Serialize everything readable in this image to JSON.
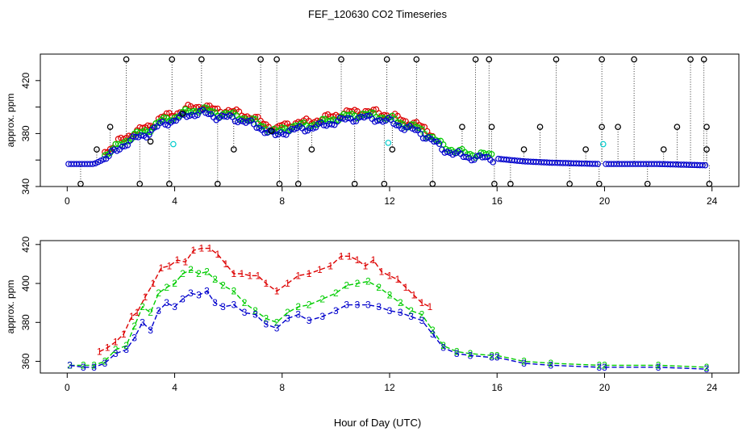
{
  "figure": {
    "title": "FEF_120630  CO2 Timeseries",
    "xlabel": "Hour of Day (UTC)"
  },
  "colors": {
    "series1": "#dd0000",
    "series2": "#00cc00",
    "series3": "#0000cc",
    "series4": "#000000",
    "series5": "#00cccc",
    "axis": "#000000"
  },
  "chart_data": [
    {
      "type": "scatter",
      "ylabel": "approx. ppm",
      "xlim": [
        -1,
        25
      ],
      "ylim": [
        340,
        440
      ],
      "x_ticks": [
        0,
        4,
        8,
        12,
        16,
        20,
        24
      ],
      "y_ticks": [
        340,
        380,
        420
      ],
      "y_minor_ticks": [
        360,
        400
      ],
      "marker": "open-circle",
      "dotted_drop_lines": true,
      "base_profile": [
        {
          "x": 0.05,
          "y": 357
        },
        {
          "x": 1.0,
          "y": 357
        },
        {
          "x": 1.5,
          "y": 362
        },
        {
          "x": 2.0,
          "y": 370
        },
        {
          "x": 2.5,
          "y": 376
        },
        {
          "x": 3.0,
          "y": 380
        },
        {
          "x": 3.5,
          "y": 387
        },
        {
          "x": 4.0,
          "y": 390
        },
        {
          "x": 4.5,
          "y": 394
        },
        {
          "x": 5.0,
          "y": 396
        },
        {
          "x": 5.5,
          "y": 393
        },
        {
          "x": 6.0,
          "y": 392
        },
        {
          "x": 6.5,
          "y": 390
        },
        {
          "x": 7.0,
          "y": 386
        },
        {
          "x": 7.5,
          "y": 381
        },
        {
          "x": 7.8,
          "y": 378
        },
        {
          "x": 8.0,
          "y": 381
        },
        {
          "x": 8.5,
          "y": 383
        },
        {
          "x": 9.0,
          "y": 384
        },
        {
          "x": 9.5,
          "y": 386
        },
        {
          "x": 10.0,
          "y": 389
        },
        {
          "x": 10.5,
          "y": 391
        },
        {
          "x": 11.0,
          "y": 392
        },
        {
          "x": 11.5,
          "y": 391
        },
        {
          "x": 12.0,
          "y": 389
        },
        {
          "x": 12.5,
          "y": 385
        },
        {
          "x": 13.0,
          "y": 382
        },
        {
          "x": 13.5,
          "y": 376
        },
        {
          "x": 14.0,
          "y": 368
        },
        {
          "x": 14.5,
          "y": 364
        },
        {
          "x": 15.0,
          "y": 362
        },
        {
          "x": 15.9,
          "y": 361
        },
        {
          "x": 16.0,
          "y": 361
        },
        {
          "x": 17.0,
          "y": 359
        },
        {
          "x": 18.0,
          "y": 358
        },
        {
          "x": 19.8,
          "y": 357
        },
        {
          "x": 20.0,
          "y": 357
        },
        {
          "x": 22.0,
          "y": 357
        },
        {
          "x": 23.8,
          "y": 356
        }
      ],
      "gaps": [
        [
          15.85,
          15.95
        ],
        [
          19.85,
          20.05
        ]
      ],
      "series": [
        {
          "key": "s1",
          "offset": 5,
          "rise_only": true,
          "x_range": [
            0.8,
            13.6
          ]
        },
        {
          "key": "s2",
          "offset": 2.5,
          "rise_only": true,
          "x_range": [
            0.8,
            15.8
          ]
        },
        {
          "key": "s3",
          "offset": 0,
          "rise_only": false,
          "x_range": [
            0.05,
            23.8
          ]
        }
      ],
      "outlier_points": [
        {
          "x": 0.5,
          "y": 342
        },
        {
          "x": 1.1,
          "y": 368
        },
        {
          "x": 1.6,
          "y": 385
        },
        {
          "x": 2.2,
          "y": 436
        },
        {
          "x": 2.7,
          "y": 342
        },
        {
          "x": 3.1,
          "y": 374
        },
        {
          "x": 3.8,
          "y": 342
        },
        {
          "x": 3.9,
          "y": 436
        },
        {
          "x": 4.3,
          "y": 395
        },
        {
          "x": 5.0,
          "y": 436
        },
        {
          "x": 5.6,
          "y": 342
        },
        {
          "x": 6.2,
          "y": 368
        },
        {
          "x": 7.2,
          "y": 436
        },
        {
          "x": 7.6,
          "y": 382
        },
        {
          "x": 7.8,
          "y": 436
        },
        {
          "x": 7.9,
          "y": 342
        },
        {
          "x": 8.6,
          "y": 342
        },
        {
          "x": 9.1,
          "y": 368
        },
        {
          "x": 10.2,
          "y": 436
        },
        {
          "x": 10.7,
          "y": 342
        },
        {
          "x": 11.8,
          "y": 342
        },
        {
          "x": 11.9,
          "y": 436
        },
        {
          "x": 12.1,
          "y": 368
        },
        {
          "x": 13.0,
          "y": 436
        },
        {
          "x": 13.6,
          "y": 342
        },
        {
          "x": 14.7,
          "y": 385
        },
        {
          "x": 15.2,
          "y": 436
        },
        {
          "x": 15.7,
          "y": 436
        },
        {
          "x": 15.8,
          "y": 385
        },
        {
          "x": 15.9,
          "y": 342
        },
        {
          "x": 16.5,
          "y": 342
        },
        {
          "x": 17.0,
          "y": 368
        },
        {
          "x": 17.6,
          "y": 385
        },
        {
          "x": 18.2,
          "y": 436
        },
        {
          "x": 18.7,
          "y": 342
        },
        {
          "x": 19.3,
          "y": 368
        },
        {
          "x": 19.8,
          "y": 342
        },
        {
          "x": 19.9,
          "y": 385
        },
        {
          "x": 19.9,
          "y": 436
        },
        {
          "x": 20.5,
          "y": 385
        },
        {
          "x": 21.1,
          "y": 436
        },
        {
          "x": 21.6,
          "y": 342
        },
        {
          "x": 22.2,
          "y": 368
        },
        {
          "x": 22.7,
          "y": 385
        },
        {
          "x": 23.2,
          "y": 436
        },
        {
          "x": 23.7,
          "y": 436
        },
        {
          "x": 23.8,
          "y": 385
        },
        {
          "x": 23.8,
          "y": 368
        },
        {
          "x": 23.9,
          "y": 342
        }
      ],
      "cyan_points": [
        {
          "x": 3.95,
          "y": 372
        },
        {
          "x": 11.95,
          "y": 373
        },
        {
          "x": 19.95,
          "y": 372
        }
      ]
    },
    {
      "type": "line",
      "ylabel": "approx. ppm",
      "xlim": [
        -1,
        25
      ],
      "ylim": [
        354,
        422
      ],
      "x_ticks": [
        0,
        4,
        8,
        12,
        16,
        20,
        24
      ],
      "y_ticks": [
        360,
        380,
        400,
        420
      ],
      "marker": "digit-labels",
      "series": [
        {
          "key": "s1",
          "name": "1",
          "points": [
            {
              "x": 1.2,
              "y": 365
            },
            {
              "x": 1.5,
              "y": 367
            },
            {
              "x": 1.8,
              "y": 370
            },
            {
              "x": 2.1,
              "y": 374
            },
            {
              "x": 2.4,
              "y": 383
            },
            {
              "x": 2.6,
              "y": 385
            },
            {
              "x": 2.9,
              "y": 393
            },
            {
              "x": 3.2,
              "y": 400
            },
            {
              "x": 3.5,
              "y": 408
            },
            {
              "x": 3.8,
              "y": 409
            },
            {
              "x": 4.1,
              "y": 412
            },
            {
              "x": 4.4,
              "y": 411
            },
            {
              "x": 4.7,
              "y": 417
            },
            {
              "x": 5.0,
              "y": 418
            },
            {
              "x": 5.3,
              "y": 418
            },
            {
              "x": 5.6,
              "y": 415
            },
            {
              "x": 5.9,
              "y": 410
            },
            {
              "x": 6.2,
              "y": 405
            },
            {
              "x": 6.5,
              "y": 405
            },
            {
              "x": 6.8,
              "y": 404
            },
            {
              "x": 7.1,
              "y": 404
            },
            {
              "x": 7.4,
              "y": 400
            },
            {
              "x": 7.8,
              "y": 396
            },
            {
              "x": 8.2,
              "y": 400
            },
            {
              "x": 8.6,
              "y": 404
            },
            {
              "x": 9.0,
              "y": 405
            },
            {
              "x": 9.4,
              "y": 407
            },
            {
              "x": 9.8,
              "y": 409
            },
            {
              "x": 10.2,
              "y": 414
            },
            {
              "x": 10.5,
              "y": 414
            },
            {
              "x": 10.8,
              "y": 412
            },
            {
              "x": 11.1,
              "y": 409
            },
            {
              "x": 11.4,
              "y": 412
            },
            {
              "x": 11.7,
              "y": 406
            },
            {
              "x": 12.0,
              "y": 404
            },
            {
              "x": 12.3,
              "y": 402
            },
            {
              "x": 12.6,
              "y": 398
            },
            {
              "x": 12.9,
              "y": 394
            },
            {
              "x": 13.2,
              "y": 390
            },
            {
              "x": 13.5,
              "y": 388
            }
          ]
        },
        {
          "key": "s2",
          "name": "2",
          "points": [
            {
              "x": 0.1,
              "y": 358
            },
            {
              "x": 0.6,
              "y": 358
            },
            {
              "x": 1.0,
              "y": 358
            },
            {
              "x": 1.4,
              "y": 360
            },
            {
              "x": 1.8,
              "y": 366
            },
            {
              "x": 2.2,
              "y": 368
            },
            {
              "x": 2.5,
              "y": 378
            },
            {
              "x": 2.8,
              "y": 388
            },
            {
              "x": 3.1,
              "y": 385
            },
            {
              "x": 3.4,
              "y": 395
            },
            {
              "x": 3.7,
              "y": 398
            },
            {
              "x": 4.0,
              "y": 400
            },
            {
              "x": 4.3,
              "y": 405
            },
            {
              "x": 4.6,
              "y": 407
            },
            {
              "x": 4.9,
              "y": 405
            },
            {
              "x": 5.2,
              "y": 406
            },
            {
              "x": 5.5,
              "y": 402
            },
            {
              "x": 5.8,
              "y": 399
            },
            {
              "x": 6.2,
              "y": 396
            },
            {
              "x": 6.6,
              "y": 390
            },
            {
              "x": 7.0,
              "y": 386
            },
            {
              "x": 7.4,
              "y": 382
            },
            {
              "x": 7.8,
              "y": 380
            },
            {
              "x": 8.2,
              "y": 385
            },
            {
              "x": 8.6,
              "y": 388
            },
            {
              "x": 9.0,
              "y": 389
            },
            {
              "x": 9.5,
              "y": 392
            },
            {
              "x": 10.0,
              "y": 395
            },
            {
              "x": 10.4,
              "y": 399
            },
            {
              "x": 10.8,
              "y": 400
            },
            {
              "x": 11.2,
              "y": 401
            },
            {
              "x": 11.6,
              "y": 398
            },
            {
              "x": 12.0,
              "y": 394
            },
            {
              "x": 12.4,
              "y": 390
            },
            {
              "x": 12.8,
              "y": 386
            },
            {
              "x": 13.2,
              "y": 384
            },
            {
              "x": 13.6,
              "y": 376
            },
            {
              "x": 14.0,
              "y": 368
            },
            {
              "x": 14.5,
              "y": 365
            },
            {
              "x": 15.0,
              "y": 364
            },
            {
              "x": 15.8,
              "y": 363
            },
            {
              "x": 16.0,
              "y": 363
            },
            {
              "x": 17.0,
              "y": 360
            },
            {
              "x": 18.0,
              "y": 359
            },
            {
              "x": 19.8,
              "y": 358
            },
            {
              "x": 20.0,
              "y": 358
            },
            {
              "x": 22.0,
              "y": 358
            },
            {
              "x": 23.8,
              "y": 357
            }
          ]
        },
        {
          "key": "s3",
          "name": "3",
          "points": [
            {
              "x": 0.1,
              "y": 358
            },
            {
              "x": 0.6,
              "y": 357
            },
            {
              "x": 1.0,
              "y": 357
            },
            {
              "x": 1.4,
              "y": 359
            },
            {
              "x": 1.8,
              "y": 364
            },
            {
              "x": 2.2,
              "y": 366
            },
            {
              "x": 2.5,
              "y": 372
            },
            {
              "x": 2.8,
              "y": 380
            },
            {
              "x": 3.1,
              "y": 376
            },
            {
              "x": 3.4,
              "y": 386
            },
            {
              "x": 3.7,
              "y": 390
            },
            {
              "x": 4.0,
              "y": 388
            },
            {
              "x": 4.3,
              "y": 392
            },
            {
              "x": 4.6,
              "y": 395
            },
            {
              "x": 4.9,
              "y": 394
            },
            {
              "x": 5.2,
              "y": 396
            },
            {
              "x": 5.5,
              "y": 390
            },
            {
              "x": 5.8,
              "y": 388
            },
            {
              "x": 6.2,
              "y": 389
            },
            {
              "x": 6.6,
              "y": 385
            },
            {
              "x": 7.0,
              "y": 384
            },
            {
              "x": 7.4,
              "y": 379
            },
            {
              "x": 7.8,
              "y": 377
            },
            {
              "x": 8.2,
              "y": 382
            },
            {
              "x": 8.6,
              "y": 384
            },
            {
              "x": 9.0,
              "y": 381
            },
            {
              "x": 9.5,
              "y": 383
            },
            {
              "x": 10.0,
              "y": 386
            },
            {
              "x": 10.4,
              "y": 389
            },
            {
              "x": 10.8,
              "y": 389
            },
            {
              "x": 11.2,
              "y": 389
            },
            {
              "x": 11.6,
              "y": 388
            },
            {
              "x": 12.0,
              "y": 386
            },
            {
              "x": 12.4,
              "y": 385
            },
            {
              "x": 12.8,
              "y": 383
            },
            {
              "x": 13.2,
              "y": 381
            },
            {
              "x": 13.6,
              "y": 374
            },
            {
              "x": 14.0,
              "y": 367
            },
            {
              "x": 14.5,
              "y": 364
            },
            {
              "x": 15.0,
              "y": 363
            },
            {
              "x": 15.8,
              "y": 362
            },
            {
              "x": 16.0,
              "y": 362
            },
            {
              "x": 17.0,
              "y": 359
            },
            {
              "x": 18.0,
              "y": 358
            },
            {
              "x": 19.8,
              "y": 357
            },
            {
              "x": 20.0,
              "y": 357
            },
            {
              "x": 22.0,
              "y": 357
            },
            {
              "x": 23.8,
              "y": 356
            }
          ]
        }
      ]
    }
  ]
}
